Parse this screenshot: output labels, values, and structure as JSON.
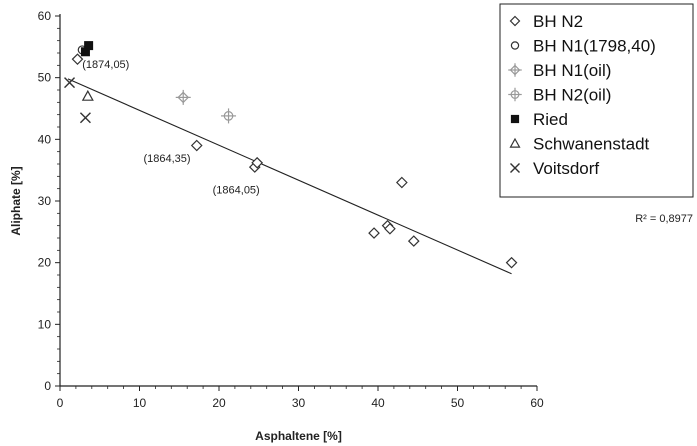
{
  "chart_data": {
    "type": "scatter",
    "xlabel": "Asphaltene [%]",
    "ylabel": "Aliphate [%]",
    "xlim": [
      0,
      60
    ],
    "ylim": [
      0,
      60
    ],
    "x_ticks": [
      "0",
      "10",
      "20",
      "30",
      "40",
      "50",
      "60"
    ],
    "y_ticks": [
      "0",
      "10",
      "20",
      "30",
      "40",
      "50",
      "60"
    ],
    "grid": false,
    "legend_position": "top-right",
    "series": [
      {
        "name": "BH N2",
        "marker": "diamond",
        "color": "#333333",
        "points": [
          [
            2.2,
            53
          ],
          [
            17.2,
            39
          ],
          [
            24.5,
            35.5
          ],
          [
            24.8,
            36.2
          ],
          [
            39.5,
            24.8
          ],
          [
            41.2,
            26
          ],
          [
            41.5,
            25.5
          ],
          [
            43,
            33
          ],
          [
            44.5,
            23.5
          ],
          [
            56.8,
            20
          ]
        ]
      },
      {
        "name": "BH N1(1798,40)",
        "marker": "circle",
        "color": "#333333",
        "points": [
          [
            2.8,
            54.5
          ]
        ]
      },
      {
        "name": "BH N1(oil)",
        "marker": "cross-diamond",
        "color": "#999999",
        "points": [
          [
            15.5,
            46.8
          ]
        ]
      },
      {
        "name": "BH N2(oil)",
        "marker": "cross-circle",
        "color": "#999999",
        "points": [
          [
            21.2,
            43.8
          ]
        ]
      },
      {
        "name": "Ried",
        "marker": "square",
        "color": "#111111",
        "points": [
          [
            3.6,
            55.2
          ],
          [
            3.2,
            54.2
          ]
        ]
      },
      {
        "name": "Schwanenstadt",
        "marker": "triangle",
        "color": "#333333",
        "points": [
          [
            3.5,
            47
          ]
        ]
      },
      {
        "name": "Voitsdorf",
        "marker": "x",
        "color": "#333333",
        "points": [
          [
            1.2,
            49.2
          ],
          [
            3.2,
            43.5
          ]
        ]
      }
    ],
    "trendline": {
      "x": [
        1,
        56.8
      ],
      "y": [
        49.8,
        18.2
      ],
      "label": "R² = 0,8977"
    },
    "annotations": [
      {
        "text": "(1874,05)",
        "x": 2.8,
        "y": 51.6
      },
      {
        "text": "(1864,35)",
        "x": 10.5,
        "y": 36.3
      },
      {
        "text": "(1864,05)",
        "x": 19.2,
        "y": 31.2
      }
    ]
  }
}
